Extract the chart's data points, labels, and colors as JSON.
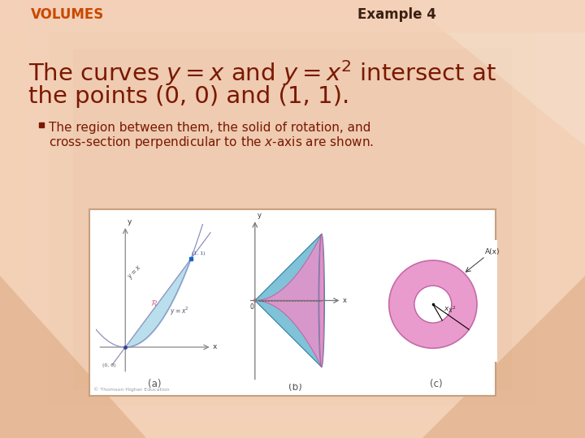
{
  "bg_color": "#f0cbb0",
  "header_volumes_text": "VOLUMES",
  "header_volumes_color": "#c84800",
  "header_example_text": "Example 4",
  "header_example_color": "#3a2010",
  "title_color": "#7a1800",
  "bullet_color": "#7a1800",
  "bullet_square_color": "#7a1800",
  "panel_bg": "#ffffff",
  "panel_border": "#c8a080",
  "caption_color": "#555555",
  "caption_a": "(a)",
  "caption_b": "(b)",
  "caption_c": "(c)",
  "cyan_color": "#6ab8d0",
  "cyan_dark": "#3a88aa",
  "pink_color": "#e890c8",
  "pink_dark": "#c060a0",
  "axis_color": "#888888",
  "curve_color": "#9090c0"
}
